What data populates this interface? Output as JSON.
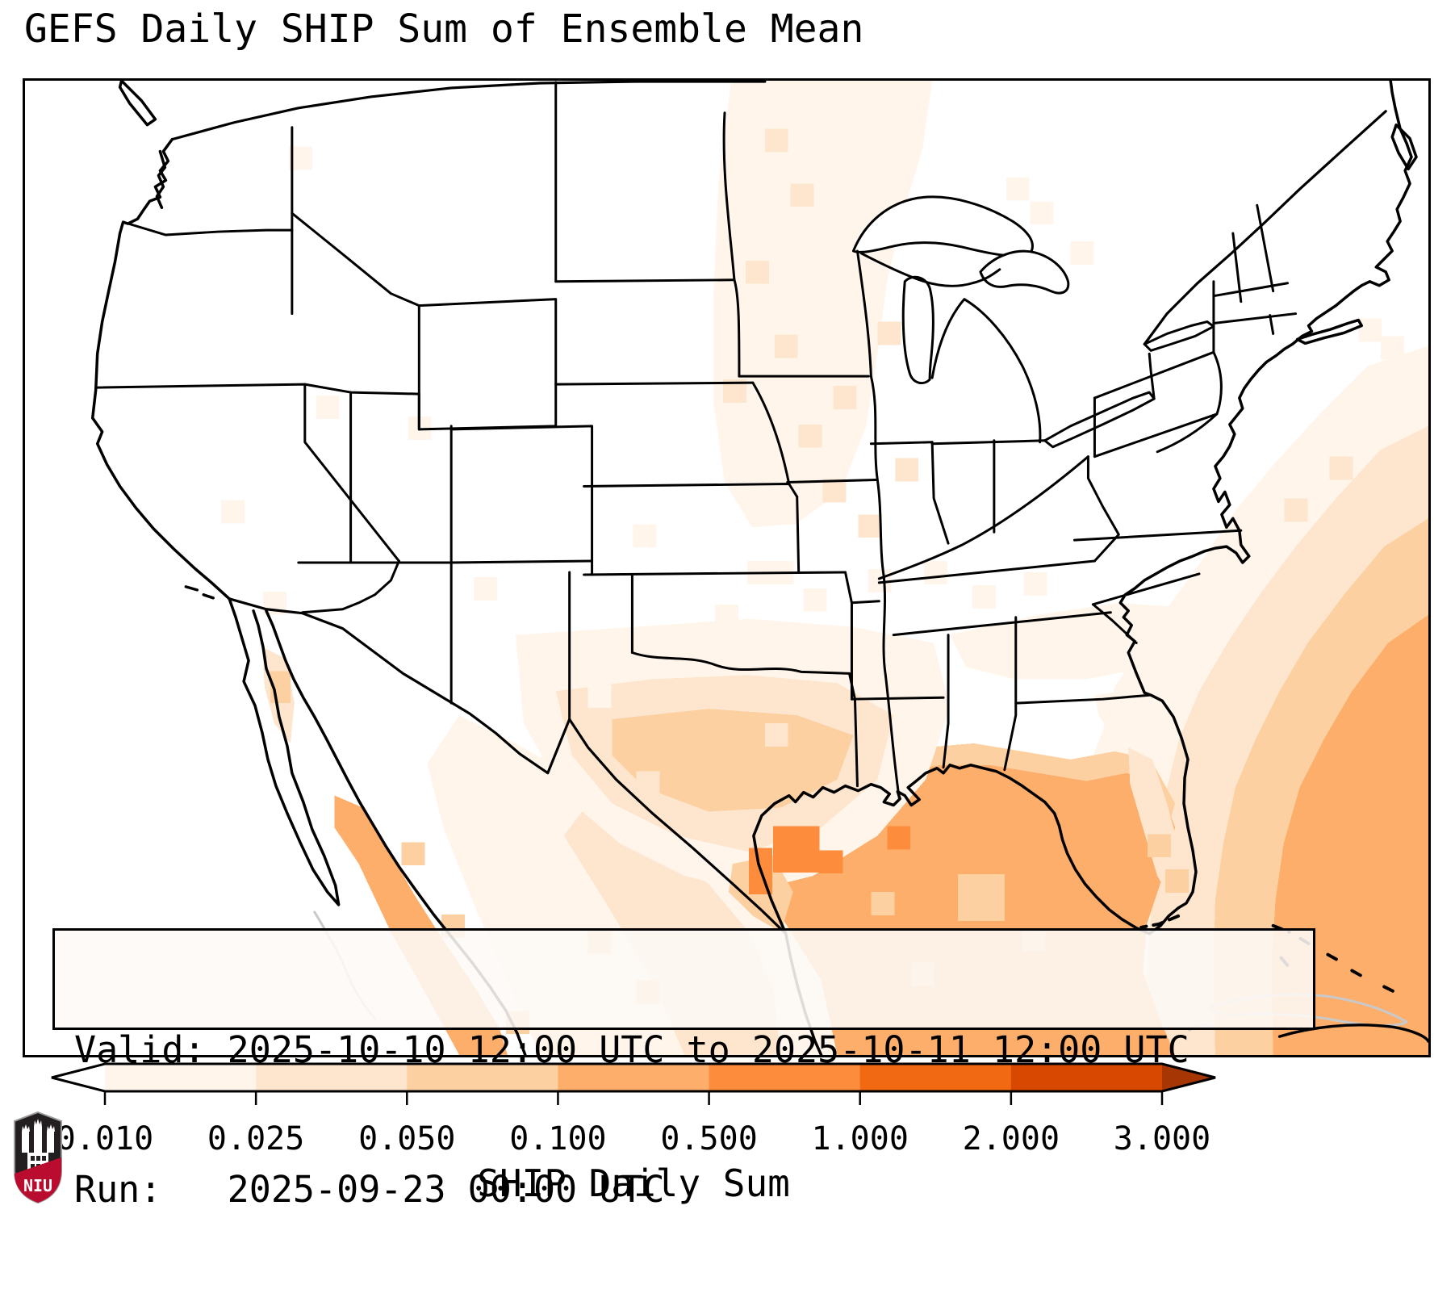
{
  "title": "GEFS Daily SHIP Sum of Ensemble Mean",
  "info_box": {
    "valid_line": "Valid: 2025-10-10 12:00 UTC to 2025-10-11 12:00 UTC",
    "run_line": "Run:   2025-09-23 00:00 UTC"
  },
  "colorbar": {
    "label": "SHIP Daily Sum",
    "ticks": [
      "0.010",
      "0.025",
      "0.050",
      "0.100",
      "0.500",
      "1.000",
      "2.000",
      "3.000"
    ],
    "segment_colors": [
      "#fff5eb",
      "#fee6ce",
      "#fdd0a2",
      "#fdae6b",
      "#fd8d3c",
      "#f16913",
      "#d94801"
    ],
    "under_color": "#ffffff",
    "over_color": "#a63603",
    "outline_color": "#000000"
  },
  "logo": {
    "text": "NIU",
    "shield_color": "#231f20",
    "band_color": "#ba0c2f",
    "castle_color": "#ffffff"
  },
  "map": {
    "border_color": "#000000",
    "coast_color": "#000000",
    "gray_outline_color": "#c9c9c9",
    "palette": {
      "1": "#fff5eb",
      "2": "#fee6ce",
      "3": "#fdd0a2",
      "4": "#fdae6b",
      "5": "#fd8d3c"
    },
    "shading": [
      {
        "l": 1,
        "p": "1745,330 1670,355 1610,415 1555,475 1505,535 1465,595 1425,650 1390,700 1355,755 1340,810 1320,860 1290,920 1260,980 1230,1060 1210,1130 1200,1213 1745,1213"
      },
      {
        "l": 2,
        "p": "1745,430 1685,460 1630,520 1580,580 1535,640 1495,700 1460,760 1435,820 1420,880 1410,950 1400,1030 1395,1110 1395,1213 1745,1213"
      },
      {
        "l": 3,
        "p": "1745,545 1690,580 1640,640 1595,700 1560,760 1530,820 1505,880 1490,950 1480,1020 1478,1100 1480,1213 1745,1213"
      },
      {
        "l": 4,
        "p": "1745,665 1695,700 1650,760 1615,820 1585,880 1565,950 1555,1020 1550,1100 1552,1213 1745,1213"
      },
      {
        "l": 3,
        "p": "880,900 940,875 1000,855 1060,840 1120,830 1180,825 1240,835 1300,845 1355,835 1400,845 1430,900 1410,970 1380,1030 1340,1080 1280,1060 1200,1040 1120,1030 1040,1030 960,1020 900,980"
      },
      {
        "l": 4,
        "p": "905,920 960,895 1020,875 1080,862 1140,852 1200,852 1260,862 1320,872 1370,862 1410,875 1430,930 1415,990 1395,1050 1390,1110 1410,1165 1430,1213 1010,1213 980,1140 950,1060 920,990"
      },
      {
        "l": 1,
        "p": "1330,765 1400,755 1412,790 1405,830 1378,845 1352,815 1335,790"
      },
      {
        "l": 2,
        "p": "1372,830 1402,845 1420,900 1436,958 1444,1012 1430,1028 1408,990 1390,930 1374,875"
      },
      {
        "l": 1,
        "p": "540,790 620,830 700,880 780,930 860,980 940,1040 990,1120 1010,1213 640,1213 600,1120 560,1030 520,930 500,850"
      },
      {
        "l": 2,
        "p": "700,900 780,950 850,1000 900,1060 930,1130 940,1213 820,1213 780,1120 720,1020 670,940"
      },
      {
        "l": 4,
        "p": "385,890 420,905 450,955 485,1015 520,1070 560,1130 590,1180 600,1213 540,1213 500,1140 455,1060 415,975 385,930"
      },
      {
        "l": 2,
        "p": "295,705 325,720 335,775 330,825 310,800 298,755"
      },
      {
        "l": 1,
        "p": "610,690 760,680 900,670 1030,680 1130,700 1150,780 1120,870 1060,940 980,990 900,1010 820,990 740,950 670,890 620,800"
      },
      {
        "l": 2,
        "p": "660,760 780,745 900,740 1010,750 1080,790 1060,870 990,930 900,960 810,940 730,900 680,840"
      },
      {
        "l": 3,
        "p": "730,795 850,782 960,790 1030,815 1010,870 940,905 850,910 770,880 730,840"
      },
      {
        "l": 3,
        "p": "880,975 930,965 955,1010 940,1060 905,1040 875,1010"
      },
      {
        "l": 1,
        "p": "878,0 1128,0 1116,85 1092,165 1072,250 1060,340 1046,430 1014,512 958,552 904,556 870,500 856,400 856,268 862,130"
      },
      {
        "l": 1,
        "p": "1150,690 1260,665 1360,650 1430,655 1450,690 1400,730 1320,745 1230,745 1170,730"
      }
    ],
    "cells": [
      [
        2,
        920,
        60
      ],
      [
        2,
        952,
        128
      ],
      [
        2,
        896,
        224
      ],
      [
        2,
        932,
        316
      ],
      [
        2,
        962,
        428
      ],
      [
        2,
        992,
        496
      ],
      [
        2,
        1036,
        540
      ],
      [
        2,
        1082,
        470
      ],
      [
        2,
        868,
        372
      ],
      [
        2,
        1005,
        380
      ],
      [
        2,
        1060,
        300
      ],
      [
        1,
        1250,
        150
      ],
      [
        1,
        1300,
        200
      ],
      [
        1,
        1220,
        120
      ],
      [
        1,
        328,
        82
      ],
      [
        1,
        296,
        636
      ],
      [
        1,
        558,
        618
      ],
      [
        1,
        618,
        842
      ],
      [
        1,
        756,
        552
      ],
      [
        1,
        476,
        418
      ],
      [
        1,
        362,
        392
      ],
      [
        1,
        244,
        522
      ],
      [
        1,
        700,
        752
      ],
      [
        1,
        898,
        598,
        58,
        29
      ],
      [
        1,
        968,
        632
      ],
      [
        1,
        1048,
        608
      ],
      [
        1,
        1118,
        598
      ],
      [
        1,
        1178,
        628
      ],
      [
        1,
        1242,
        612
      ],
      [
        1,
        858,
        652
      ],
      [
        2,
        760,
        860
      ],
      [
        2,
        920,
        800
      ],
      [
        5,
        930,
        928,
        58,
        58
      ],
      [
        5,
        900,
        955,
        29,
        58
      ],
      [
        5,
        988,
        958
      ],
      [
        5,
        1072,
        928
      ],
      [
        3,
        1160,
        988,
        58,
        58
      ],
      [
        3,
        1240,
        1055
      ],
      [
        3,
        1102,
        1098
      ],
      [
        3,
        1052,
        1010
      ],
      [
        1,
        1686,
        318
      ],
      [
        1,
        1714,
        345,
        29,
        58
      ],
      [
        1,
        1658,
        296
      ],
      [
        2,
        1566,
        520
      ],
      [
        2,
        1622,
        468
      ],
      [
        3,
        1418,
        982
      ],
      [
        3,
        1396,
        938
      ],
      [
        3,
        468,
        948
      ],
      [
        3,
        518,
        1038
      ],
      [
        3,
        598,
        1158
      ],
      [
        3,
        700,
        1058
      ],
      [
        3,
        760,
        1120
      ],
      [
        3,
        305,
        735,
        25,
        40
      ]
    ]
  }
}
